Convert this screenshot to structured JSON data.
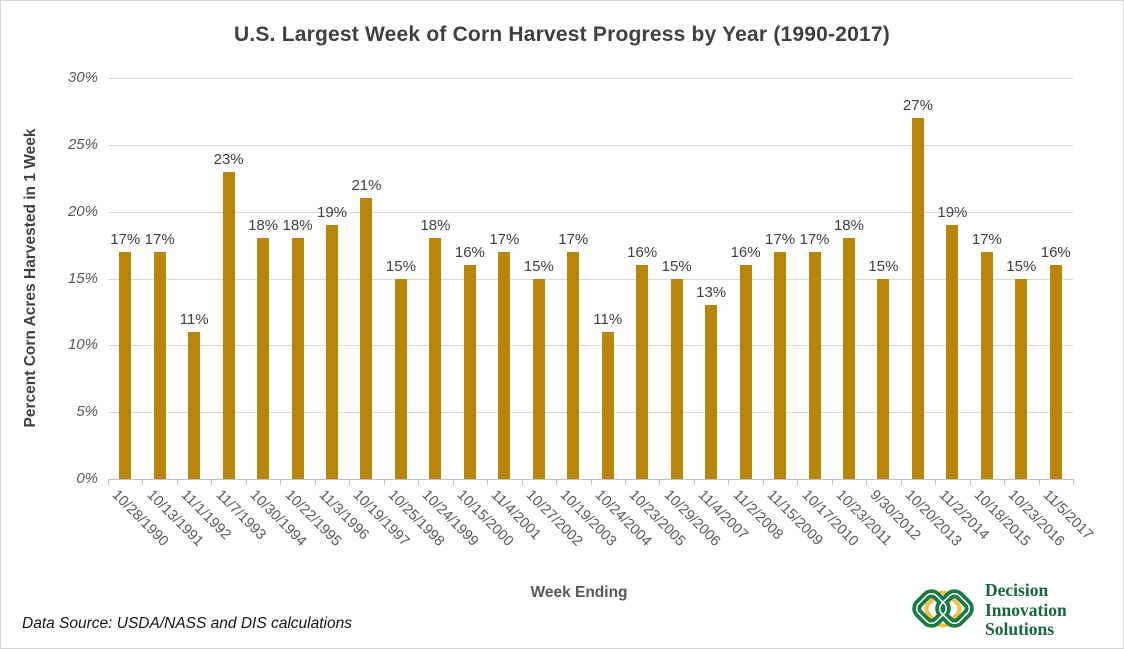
{
  "chart_data": {
    "type": "bar",
    "title": "U.S. Largest Week of Corn Harvest Progress by Year (1990-2017)",
    "xlabel": "Week Ending",
    "ylabel": "Percent Corn Acres Harvested in 1 Week",
    "ylim": [
      0,
      30
    ],
    "yticks": [
      0,
      5,
      10,
      15,
      20,
      25,
      30
    ],
    "ytick_labels": [
      "0%",
      "5%",
      "10%",
      "15%",
      "20%",
      "25%",
      "30%"
    ],
    "categories": [
      "10/28/1990",
      "10/13/1991",
      "11/1/1992",
      "11/7/1993",
      "10/30/1994",
      "10/22/1995",
      "11/3/1996",
      "10/19/1997",
      "10/25/1998",
      "10/24/1999",
      "10/15/2000",
      "11/4/2001",
      "10/27/2002",
      "10/19/2003",
      "10/24/2004",
      "10/23/2005",
      "10/29/2006",
      "11/4/2007",
      "11/2/2008",
      "11/15/2009",
      "10/17/2010",
      "10/23/2011",
      "9/30/2012",
      "10/20/2013",
      "11/2/2014",
      "10/18/2015",
      "10/23/2016",
      "11/5/2017"
    ],
    "values": [
      17,
      17,
      11,
      23,
      18,
      18,
      19,
      21,
      15,
      18,
      16,
      17,
      15,
      17,
      11,
      16,
      15,
      13,
      16,
      17,
      17,
      18,
      15,
      27,
      19,
      17,
      15,
      16
    ],
    "data_label_suffix": "%",
    "bar_color": "#b7860b",
    "grid": true,
    "gridline_color": "#d9d9d9",
    "axis_color": "#bfbfbf",
    "legend": "none"
  },
  "footer": {
    "source": "Data Source: USDA/NASS and DIS calculations"
  },
  "logo": {
    "lines": [
      "Decision",
      "Innovation",
      "Solutions"
    ],
    "green": "#1a7a44",
    "yellow": "#f2c23e",
    "text_color": "#17693c"
  }
}
